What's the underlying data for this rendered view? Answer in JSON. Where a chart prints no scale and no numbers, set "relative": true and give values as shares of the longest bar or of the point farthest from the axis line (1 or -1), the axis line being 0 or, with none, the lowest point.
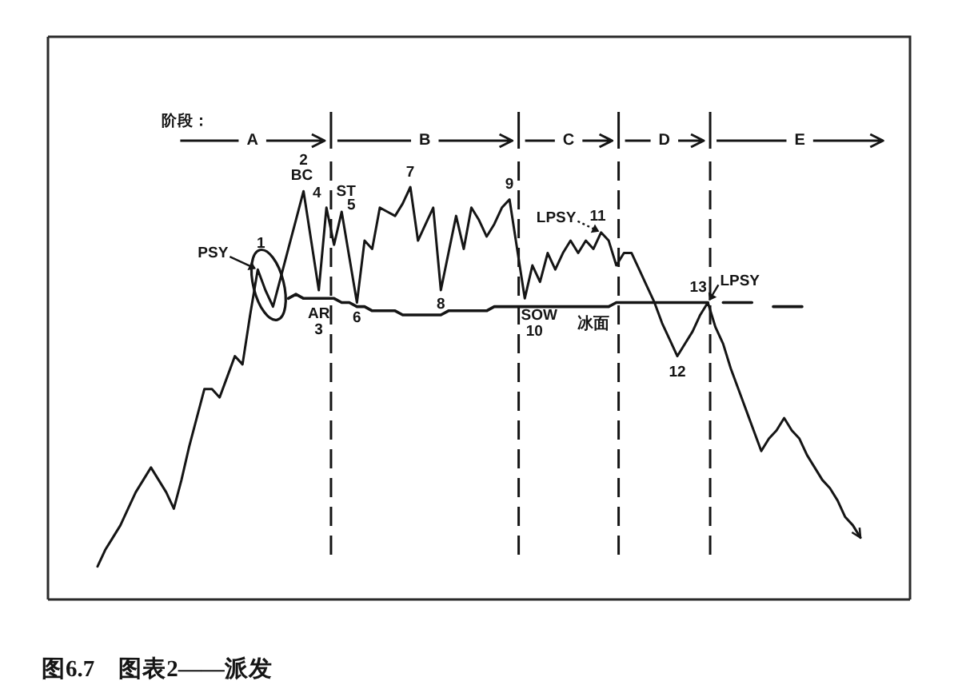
{
  "chart_data": {
    "type": "line",
    "relative": true,
    "categories": [
      null,
      null,
      null,
      null,
      null,
      null,
      null,
      null,
      null,
      null,
      null,
      null,
      null,
      null,
      null,
      null,
      null,
      null,
      null,
      null,
      null,
      null,
      null,
      null,
      null,
      null,
      null,
      null,
      null,
      null,
      null,
      null,
      null,
      null,
      null,
      null,
      null,
      null,
      null,
      null,
      null,
      null,
      null,
      null,
      null,
      null,
      null,
      null,
      null,
      null,
      null,
      null,
      null,
      null,
      null,
      null,
      null,
      null,
      null,
      null,
      null,
      null,
      null,
      null,
      null,
      null,
      null,
      null,
      null,
      null,
      null,
      null,
      null,
      null,
      null,
      null,
      null,
      null,
      null,
      null,
      null,
      null,
      null,
      null,
      null,
      null,
      null,
      null,
      null,
      null,
      null,
      null,
      null,
      null,
      null,
      null,
      null,
      null,
      null,
      null,
      null,
      null,
      null,
      null,
      null,
      null,
      null,
      null,
      null,
      null,
      null,
      null,
      null
    ],
    "series": [
      {
        "color": "#151515",
        "values": [
          null,
          null,
          null,
          null,
          null,
          null,
          0.08,
          0.12,
          0.15,
          0.18,
          0.22,
          0.26,
          0.29,
          0.32,
          0.29,
          0.26,
          0.22,
          0.29,
          0.37,
          0.44,
          0.51,
          0.51,
          0.49,
          0.54,
          0.59,
          0.57,
          0.69,
          0.8,
          0.75,
          0.71,
          0.78,
          0.85,
          0.92,
          0.99,
          0.87,
          0.75,
          0.95,
          0.86,
          0.94,
          0.83,
          0.72,
          0.87,
          0.85,
          0.95,
          0.94,
          0.93,
          0.96,
          1.0,
          0.87,
          0.91,
          0.95,
          0.75,
          0.84,
          0.93,
          0.85,
          0.95,
          0.92,
          0.88,
          0.91,
          0.95,
          0.97,
          0.85,
          0.73,
          0.81,
          0.77,
          0.84,
          0.8,
          0.84,
          0.87,
          0.84,
          0.87,
          0.85,
          0.89,
          0.87,
          0.81,
          0.84,
          0.84,
          0.8,
          0.76,
          0.72,
          0.67,
          0.63,
          0.59,
          0.62,
          0.65,
          0.69,
          0.72,
          0.66,
          0.62,
          0.56,
          0.51,
          0.46,
          0.41,
          0.36,
          0.39,
          0.41,
          0.44,
          0.41,
          0.39,
          0.35,
          0.32,
          0.29,
          0.27,
          0.24,
          0.2,
          0.18,
          0.15,
          null,
          null,
          null,
          null,
          null,
          null
        ]
      },
      {
        "name": "冰面",
        "color": "#151515",
        "values": [
          null,
          null,
          null,
          null,
          null,
          null,
          null,
          null,
          null,
          null,
          null,
          null,
          null,
          null,
          null,
          null,
          null,
          null,
          null,
          null,
          null,
          null,
          null,
          null,
          null,
          null,
          null,
          null,
          null,
          null,
          null,
          0.73,
          0.74,
          0.73,
          0.73,
          0.73,
          0.73,
          0.73,
          0.72,
          0.72,
          0.71,
          0.71,
          0.7,
          0.7,
          0.7,
          0.7,
          0.69,
          0.69,
          0.69,
          0.69,
          0.69,
          0.69,
          0.7,
          0.7,
          0.7,
          0.7,
          0.7,
          0.7,
          0.71,
          0.71,
          0.71,
          0.71,
          0.71,
          0.71,
          0.71,
          0.71,
          0.71,
          0.71,
          0.71,
          0.71,
          0.71,
          0.71,
          0.71,
          0.71,
          0.72,
          0.72,
          0.72,
          0.72,
          0.72,
          0.72,
          0.72,
          0.72,
          0.72,
          0.72,
          0.72,
          0.72,
          0.72,
          null,
          null,
          null,
          null,
          null,
          null,
          null,
          null,
          null,
          null,
          null,
          null,
          null,
          null,
          null,
          null,
          null,
          null,
          null,
          null,
          null,
          null,
          null,
          null,
          null,
          null
        ]
      },
      {
        "color": "#151515",
        "line_style": "dashed",
        "values": [
          null,
          null,
          null,
          null,
          null,
          null,
          null,
          null,
          null,
          null,
          null,
          null,
          null,
          null,
          null,
          null,
          null,
          null,
          null,
          null,
          null,
          null,
          null,
          null,
          null,
          null,
          null,
          null,
          null,
          null,
          null,
          null,
          null,
          null,
          null,
          null,
          null,
          null,
          null,
          null,
          null,
          null,
          null,
          null,
          null,
          null,
          null,
          null,
          null,
          null,
          null,
          null,
          null,
          null,
          null,
          null,
          null,
          null,
          null,
          null,
          null,
          null,
          null,
          null,
          null,
          null,
          null,
          null,
          null,
          null,
          null,
          null,
          null,
          null,
          null,
          null,
          null,
          null,
          null,
          null,
          null,
          null,
          null,
          null,
          null,
          null,
          null,
          null,
          0.72,
          0.72,
          0.72,
          0.72,
          0.72,
          0.72,
          0.71,
          0.71,
          0.71,
          0.71,
          0.71,
          0.71,
          null,
          null,
          null,
          null,
          null,
          null,
          null,
          null,
          null,
          null,
          null,
          null,
          null
        ]
      }
    ],
    "annotations": [
      "阶段：",
      "A",
      "B",
      "C",
      "D",
      "E",
      "1",
      "PSY",
      "2",
      "BC",
      "AR",
      "3",
      "4",
      "ST",
      "5",
      "6",
      "7",
      "8",
      "9",
      "SOW",
      "10",
      "LPSY",
      "11",
      "12",
      "13",
      "LPSY",
      "图6.7　图表2——派发"
    ]
  }
}
